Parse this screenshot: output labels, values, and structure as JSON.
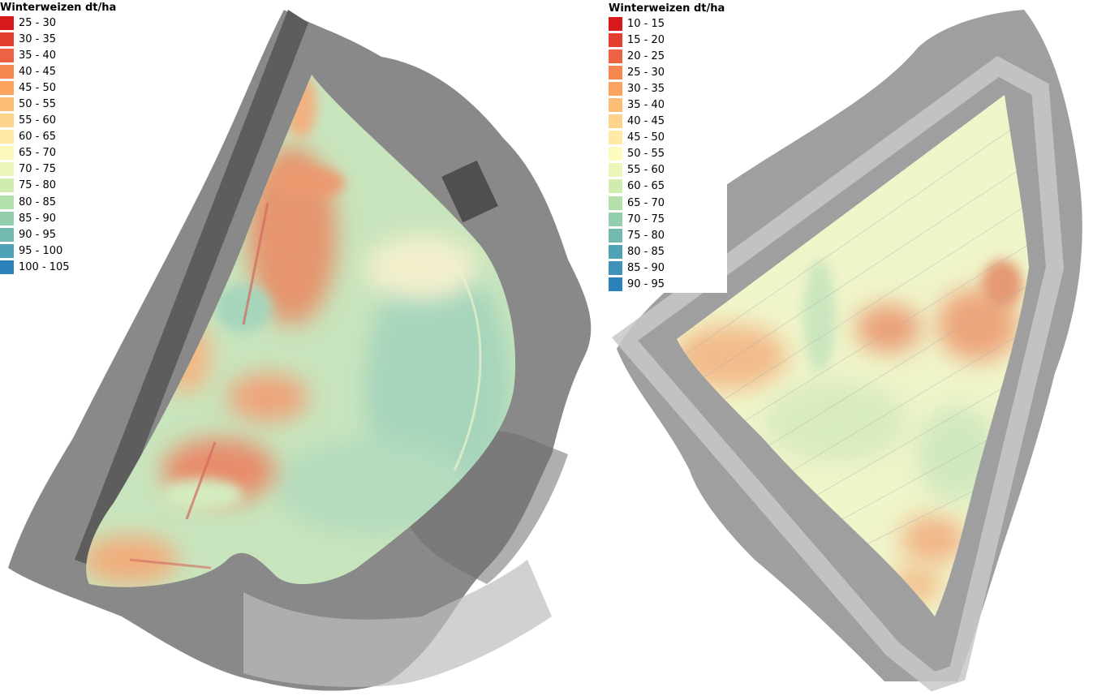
{
  "maps": [
    {
      "legend": {
        "title": "Winterweizen dt/ha",
        "classes": [
          {
            "label": "25 - 30",
            "color": "#d7191c"
          },
          {
            "label": "30 - 35",
            "color": "#e23f30"
          },
          {
            "label": "35 - 40",
            "color": "#ec6242"
          },
          {
            "label": "40 - 45",
            "color": "#f6874f"
          },
          {
            "label": "45 - 50",
            "color": "#fba35f"
          },
          {
            "label": "50 - 55",
            "color": "#fdbd74"
          },
          {
            "label": "55 - 60",
            "color": "#fed48d"
          },
          {
            "label": "60 - 65",
            "color": "#ffe9a5"
          },
          {
            "label": "65 - 70",
            "color": "#fbf8bc"
          },
          {
            "label": "70 - 75",
            "color": "#eaf6b8"
          },
          {
            "label": "75 - 80",
            "color": "#d1ecaf"
          },
          {
            "label": "80 - 85",
            "color": "#b4e0aa"
          },
          {
            "label": "85 - 90",
            "color": "#93cfad"
          },
          {
            "label": "90 - 95",
            "color": "#72bab0"
          },
          {
            "label": "95 - 100",
            "color": "#50a3b6"
          },
          {
            "label": "100 - 105",
            "color": "#2b83ba"
          }
        ]
      }
    },
    {
      "legend": {
        "title": "Winterweizen dt/ha",
        "classes": [
          {
            "label": "10 - 15",
            "color": "#d7191c"
          },
          {
            "label": "15 - 20",
            "color": "#e23f30"
          },
          {
            "label": "20 - 25",
            "color": "#ec6242"
          },
          {
            "label": "25 - 30",
            "color": "#f6874f"
          },
          {
            "label": "30 - 35",
            "color": "#fba35f"
          },
          {
            "label": "35 - 40",
            "color": "#fdbd74"
          },
          {
            "label": "40 - 45",
            "color": "#fed48d"
          },
          {
            "label": "45 - 50",
            "color": "#ffe9a5"
          },
          {
            "label": "50 - 55",
            "color": "#fdfbbe"
          },
          {
            "label": "55 - 60",
            "color": "#eaf6b8"
          },
          {
            "label": "60 - 65",
            "color": "#d1ecaf"
          },
          {
            "label": "65 - 70",
            "color": "#b4e0aa"
          },
          {
            "label": "70 - 75",
            "color": "#93cfad"
          },
          {
            "label": "75 - 80",
            "color": "#72bab0"
          },
          {
            "label": "80 - 85",
            "color": "#50a3b6"
          },
          {
            "label": "85 - 90",
            "color": "#3f93b8"
          },
          {
            "label": "90 - 95",
            "color": "#2b83ba"
          }
        ]
      }
    }
  ]
}
